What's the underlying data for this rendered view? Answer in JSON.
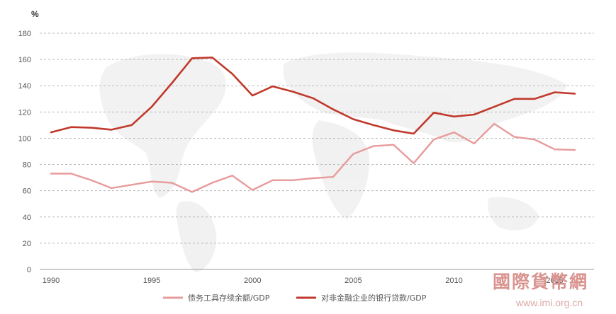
{
  "chart_data": {
    "type": "line",
    "unit_label": "%",
    "ylim": [
      0,
      180
    ],
    "y_ticks": [
      0,
      20,
      40,
      60,
      80,
      100,
      120,
      140,
      160,
      180
    ],
    "x_range": [
      1990,
      2016
    ],
    "x_tick_values": [
      1990,
      1995,
      2000,
      2005,
      2010,
      2015
    ],
    "x_tick_labels": [
      "1990",
      "1995",
      "2000",
      "2005",
      "2010",
      "2015"
    ],
    "grid": "horizontal dashed",
    "legend_position": "bottom",
    "series": [
      {
        "name": "债务工具存续余额/GDP",
        "color": "#e89b9b",
        "x": [
          1990,
          1991,
          1992,
          1993,
          1994,
          1995,
          1996,
          1997,
          1998,
          1999,
          2000,
          2001,
          2002,
          2003,
          2004,
          2005,
          2006,
          2007,
          2008,
          2009,
          2010,
          2011,
          2012,
          2013,
          2014,
          2015,
          2016
        ],
        "values": [
          73,
          73,
          68,
          62,
          64.5,
          67,
          66,
          59,
          66,
          71.5,
          60.5,
          68,
          68,
          69.5,
          70.5,
          88,
          94,
          95,
          81,
          99,
          104.5,
          96,
          111,
          101,
          99,
          91.5,
          91
        ]
      },
      {
        "name": "对非金融企业的银行贷款/GDP",
        "color": "#c0392b",
        "x": [
          1990,
          1991,
          1992,
          1993,
          1994,
          1995,
          1996,
          1997,
          1998,
          1999,
          2000,
          2001,
          2002,
          2003,
          2004,
          2005,
          2006,
          2007,
          2008,
          2009,
          2010,
          2011,
          2012,
          2013,
          2014,
          2015,
          2016
        ],
        "values": [
          104.5,
          108.5,
          108,
          106.5,
          110,
          124,
          142,
          161,
          161.5,
          149,
          132.5,
          139.5,
          135.5,
          130.5,
          122,
          114.5,
          110,
          106,
          103.5,
          119.5,
          116.5,
          118,
          124,
          130,
          130,
          135,
          134
        ]
      }
    ]
  },
  "watermark": {
    "brand_text": "國際貨幣網",
    "url_text": "www.imi.org.cn"
  }
}
